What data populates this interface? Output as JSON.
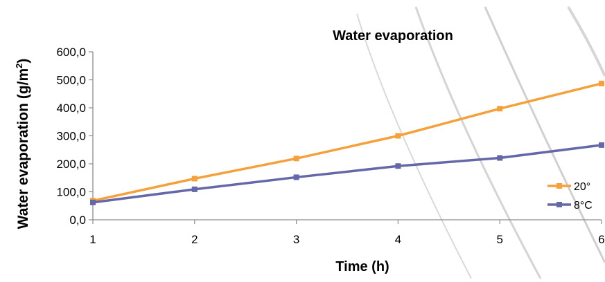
{
  "chart_data": {
    "type": "line",
    "title": "Water evaporation",
    "xlabel": "Time (h)",
    "ylabel_main": "Water evaporation (g/m",
    "ylabel_sup": "2",
    "ylabel_close": ")",
    "x": [
      1,
      2,
      3,
      4,
      5,
      6
    ],
    "x_tick_labels": [
      "1",
      "2",
      "3",
      "4",
      "5",
      "6"
    ],
    "ylim": [
      0,
      600
    ],
    "y_ticks": [
      0,
      100,
      200,
      300,
      400,
      500,
      600
    ],
    "y_tick_labels": [
      "0,0",
      "100,0",
      "200,0",
      "300,0",
      "400,0",
      "500,0",
      "600,0"
    ],
    "series": [
      {
        "name": "20°",
        "color": "#F5A03A",
        "values": [
          68,
          147,
          219,
          300,
          397,
          487
        ]
      },
      {
        "name": "8°C",
        "color": "#6468A8",
        "values": [
          62,
          109,
          152,
          192,
          221,
          267
        ]
      }
    ],
    "legend_position": "right"
  }
}
